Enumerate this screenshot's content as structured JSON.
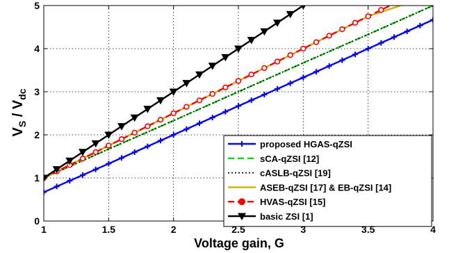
{
  "chart_data": {
    "type": "line",
    "xlabel": "Voltage gain, G",
    "ylabel": {
      "main": "V",
      "sub1": "S",
      "sep": " / V",
      "sub2": "dc"
    },
    "xlim": [
      1,
      4
    ],
    "ylim": [
      0,
      5
    ],
    "xticks": [
      "1",
      "1.5",
      "2",
      "2.5",
      "3",
      "3.5",
      "4"
    ],
    "yticks": [
      "0",
      "1",
      "2",
      "3",
      "4",
      "5"
    ],
    "grid": true,
    "legend_position": "bottom-right",
    "series": [
      {
        "name": "proposed HGAS-qZSI",
        "color": "#0000ff",
        "style": "solid",
        "marker": "plus",
        "x": [
          1,
          1.5,
          2,
          2.5,
          3,
          3.5,
          4
        ],
        "y": [
          0.67,
          1.33,
          2.0,
          2.67,
          3.33,
          4.0,
          4.67
        ]
      },
      {
        "name": "sCA-qZSI [12]",
        "color": "#00dd00",
        "style": "dashed",
        "marker": "none",
        "x": [
          1,
          1.5,
          2,
          2.5,
          3,
          3.5,
          4
        ],
        "y": [
          1.0,
          1.67,
          2.33,
          3.0,
          3.67,
          4.33,
          5.0
        ]
      },
      {
        "name": "cASLB-qZSI [19]",
        "color": "#000000",
        "style": "dotted",
        "marker": "none",
        "x": [
          1,
          1.5,
          2,
          2.5,
          3,
          3.5,
          4
        ],
        "y": [
          1.0,
          1.67,
          2.33,
          3.0,
          3.67,
          4.33,
          5.0
        ]
      },
      {
        "name": "ASEB-qZSI [17] & EB-qZSI [14]",
        "color": "#c8b400",
        "style": "solid",
        "marker": "none",
        "x": [
          1,
          1.5,
          2,
          2.5,
          3,
          3.5,
          3.75
        ],
        "y": [
          1.0,
          1.75,
          2.5,
          3.25,
          4.0,
          4.75,
          5.0
        ]
      },
      {
        "name": "HVAS-qZSI [15]",
        "color": "#ff0000",
        "style": "dashed",
        "marker": "circle",
        "x": [
          1,
          1.5,
          2,
          2.5,
          3,
          3.5,
          3.67
        ],
        "y": [
          1.0,
          1.75,
          2.5,
          3.25,
          4.0,
          4.75,
          5.0
        ]
      },
      {
        "name": "basic ZSI [1]",
        "color": "#000000",
        "style": "solid",
        "marker": "triangle-down",
        "x": [
          1,
          1.5,
          2,
          2.5,
          3
        ],
        "y": [
          1.0,
          2.0,
          3.0,
          4.0,
          5.0
        ]
      }
    ]
  }
}
